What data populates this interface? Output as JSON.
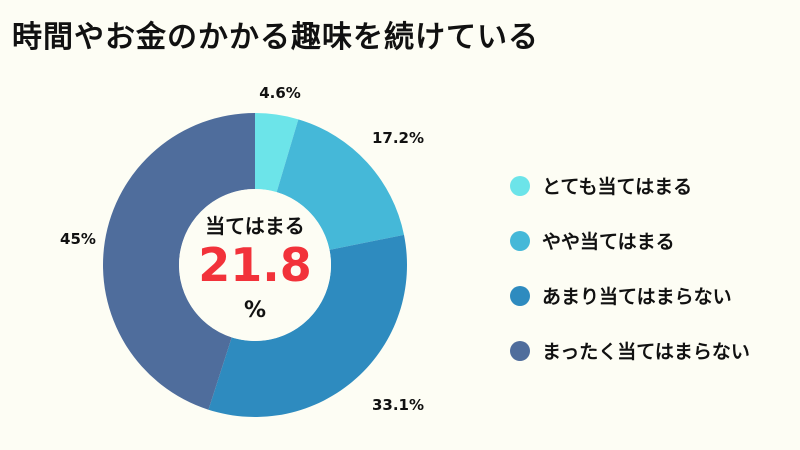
{
  "chart_data": {
    "type": "pie",
    "title": "時間やお金のかかる趣味を続けている",
    "categories": [
      "とても当てはまる",
      "やや当てはまる",
      "あまり当てはまらない",
      "まったく当てはまらない"
    ],
    "values": [
      4.6,
      17.2,
      33.1,
      45
    ],
    "labels": [
      "4.6%",
      "17.2%",
      "33.1%",
      "45%"
    ],
    "colors": [
      "#6ce4e9",
      "#45b8d8",
      "#2e8bbf",
      "#4f6d9c"
    ],
    "donut": true,
    "legend": "right",
    "center": {
      "label": "当てはまる",
      "value": "21.8",
      "unit": "%"
    }
  }
}
